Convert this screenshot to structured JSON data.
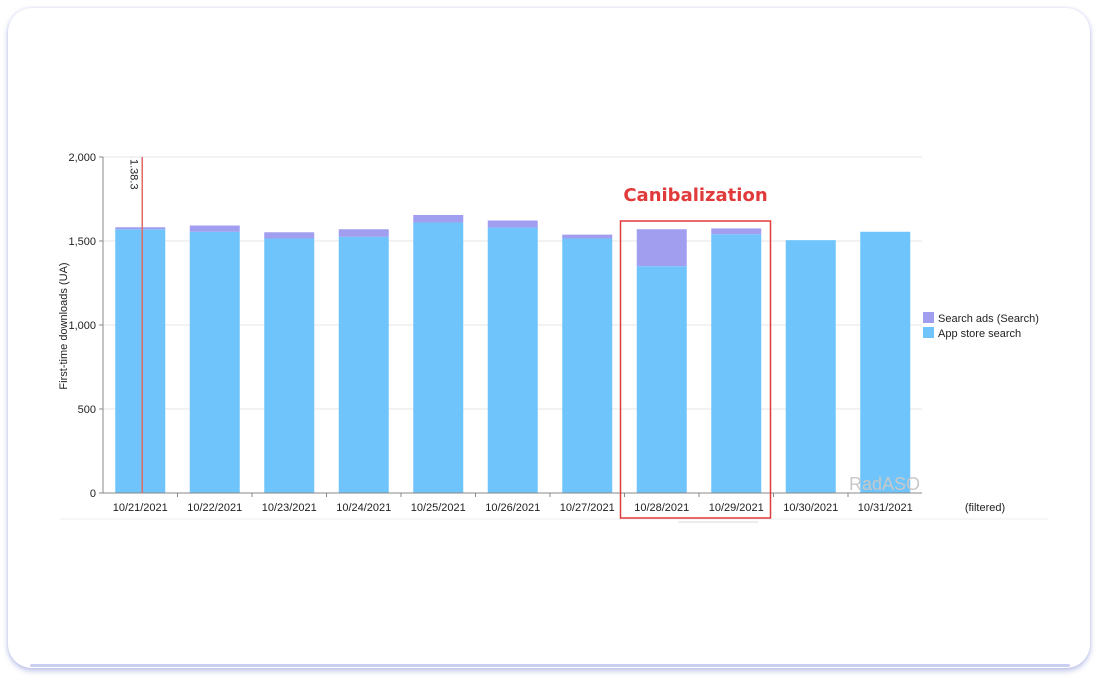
{
  "colors": {
    "search_ads": "#a19ef0",
    "app_store_search": "#6ec4fb",
    "annotation": "#e03a3a",
    "version_marker": "#e06a6a",
    "grid": "#e6e6e6"
  },
  "chart_data": {
    "type": "bar",
    "stacked": true,
    "categories": [
      "10/21/2021",
      "10/22/2021",
      "10/23/2021",
      "10/24/2021",
      "10/25/2021",
      "10/26/2021",
      "10/27/2021",
      "10/28/2021",
      "10/29/2021",
      "10/30/2021",
      "10/31/2021"
    ],
    "series": [
      {
        "name": "App store search",
        "color": "#6ec4fb",
        "values": [
          1570,
          1555,
          1515,
          1525,
          1610,
          1580,
          1515,
          1350,
          1540,
          1505,
          1555
        ]
      },
      {
        "name": "Search ads (Search)",
        "color": "#a19ef0",
        "values": [
          12,
          37,
          37,
          45,
          45,
          42,
          23,
          220,
          35,
          0,
          0
        ]
      }
    ],
    "ylabel": "First-time downloads (UA)",
    "ylim": [
      0,
      2000
    ],
    "yticks": [
      0,
      500,
      1000,
      1500,
      2000
    ],
    "ytick_labels": [
      "0",
      "500",
      "1,000",
      "1,500",
      "2,000"
    ],
    "grid": true,
    "legend_position": "right",
    "legend": [
      {
        "label": "Search ads (Search)",
        "color": "#a19ef0"
      },
      {
        "label": "App store search",
        "color": "#6ec4fb"
      }
    ],
    "extra_x_label": "(filtered)",
    "version_marker": {
      "category": "10/21/2021",
      "label": "1.38.3"
    },
    "annotation": {
      "text": "Canibalization",
      "categories": [
        "10/28/2021",
        "10/29/2021"
      ]
    },
    "watermark": "RadASO"
  }
}
